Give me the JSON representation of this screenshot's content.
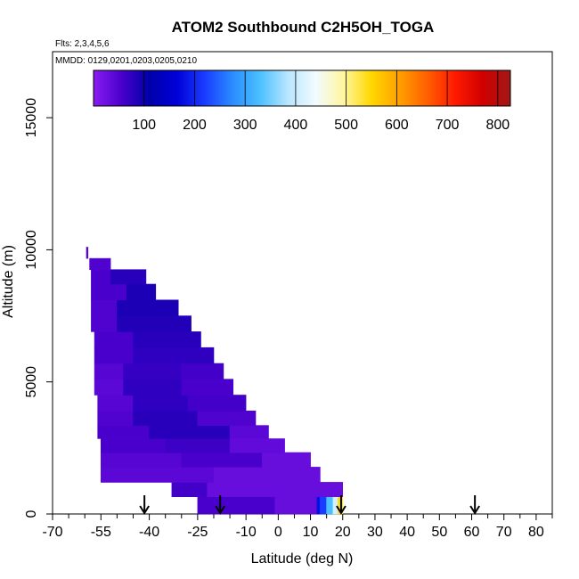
{
  "chart_data": {
    "type": "heatmap",
    "title": "ATOM2 Southbound C2H5OH_TOGA",
    "flights_label": "Flts: 2,3,4,5,6",
    "dates_label": "MMDD: 0129,0201,0203,0205,0210",
    "xlabel": "Latitude (deg N)",
    "ylabel": "Altitude (m)",
    "xlim": [
      -70,
      85
    ],
    "ylim": [
      0,
      17500
    ],
    "x_ticks": [
      -70,
      -55,
      -40,
      -25,
      -10,
      0,
      10,
      20,
      30,
      40,
      50,
      60,
      70,
      80
    ],
    "x_tick_labels": [
      "-70",
      "-55",
      "-40",
      "-25",
      "-10",
      "0",
      "10",
      "20",
      "30",
      "40",
      "50",
      "60",
      "70",
      "80"
    ],
    "x_minor_ticks": [
      -65,
      -60,
      -50,
      -45,
      -35,
      -30,
      -20,
      -15,
      -5,
      5,
      15,
      25,
      35,
      45,
      55,
      65,
      75,
      85
    ],
    "y_ticks": [
      0,
      5000,
      10000,
      15000
    ],
    "y_tick_labels": [
      "0",
      "5000",
      "10000",
      "15000"
    ],
    "colorbar": {
      "min": 0,
      "max": 825,
      "ticks": [
        100,
        200,
        300,
        400,
        500,
        600,
        700,
        800
      ],
      "tick_labels": [
        "100",
        "200",
        "300",
        "400",
        "500",
        "600",
        "700",
        "800"
      ],
      "colors": [
        "#8a1cf0",
        "#4a00cc",
        "#0000a8",
        "#0000d8",
        "#1a3cff",
        "#2a8cff",
        "#4cc0ff",
        "#b8e6ff",
        "#f2fbff",
        "#fff6a0",
        "#ffd800",
        "#ffa000",
        "#ff6000",
        "#ff1a00",
        "#d00000",
        "#a01818"
      ]
    },
    "profile_latitudes": [
      -41.5,
      -18,
      19.5,
      61
    ],
    "data": {
      "lat_start": -56.5,
      "lat_step": 0.5,
      "rows": [
        {
          "z": 400,
          "x0": -25,
          "x1": -1,
          "v": 55
        },
        {
          "z": 400,
          "x0": -1,
          "x1": 12,
          "v": 30
        },
        {
          "z": 400,
          "x0": 12,
          "x1": 13,
          "v": 180
        },
        {
          "z": 400,
          "x0": 13,
          "x1": 15,
          "v": 220
        },
        {
          "z": 400,
          "x0": 15,
          "x1": 17,
          "v": 330
        },
        {
          "z": 400,
          "x0": 17,
          "x1": 18.5,
          "v": 410
        },
        {
          "z": 400,
          "x0": 18.5,
          "x1": 20,
          "v": 540
        },
        {
          "z": 900,
          "x0": -33,
          "x1": -22,
          "v": 60
        },
        {
          "z": 900,
          "x0": -22,
          "x1": 20,
          "v": 30
        },
        {
          "z": 1500,
          "x0": -55,
          "x1": -20,
          "v": 40
        },
        {
          "z": 1500,
          "x0": -20,
          "x1": 13,
          "v": 30
        },
        {
          "z": 2050,
          "x0": -55,
          "x1": -30,
          "v": 45
        },
        {
          "z": 2050,
          "x0": -30,
          "x1": -5,
          "v": 55
        },
        {
          "z": 2050,
          "x0": -5,
          "x1": 10,
          "v": 30
        },
        {
          "z": 2600,
          "x0": -55,
          "x1": -35,
          "v": 55
        },
        {
          "z": 2600,
          "x0": -35,
          "x1": -15,
          "v": 65
        },
        {
          "z": 2600,
          "x0": -15,
          "x1": 2,
          "v": 35
        },
        {
          "z": 3100,
          "x0": -56,
          "x1": -40,
          "v": 55
        },
        {
          "z": 3100,
          "x0": -40,
          "x1": -15,
          "v": 80
        },
        {
          "z": 3100,
          "x0": -15,
          "x1": -3,
          "v": 40
        },
        {
          "z": 3600,
          "x0": -56,
          "x1": -45,
          "v": 50
        },
        {
          "z": 3600,
          "x0": -45,
          "x1": -25,
          "v": 80
        },
        {
          "z": 3600,
          "x0": -25,
          "x1": -7,
          "v": 50
        },
        {
          "z": 4200,
          "x0": -56,
          "x1": -45,
          "v": 45
        },
        {
          "z": 4200,
          "x0": -45,
          "x1": -28,
          "v": 75
        },
        {
          "z": 4200,
          "x0": -28,
          "x1": -10,
          "v": 60
        },
        {
          "z": 4800,
          "x0": -57,
          "x1": -48,
          "v": 40
        },
        {
          "z": 4800,
          "x0": -48,
          "x1": -30,
          "v": 75
        },
        {
          "z": 4800,
          "x0": -30,
          "x1": -14,
          "v": 55
        },
        {
          "z": 5400,
          "x0": -57,
          "x1": -48,
          "v": 45
        },
        {
          "z": 5400,
          "x0": -48,
          "x1": -30,
          "v": 70
        },
        {
          "z": 5400,
          "x0": -30,
          "x1": -17,
          "v": 60
        },
        {
          "z": 6000,
          "x0": -57,
          "x1": -45,
          "v": 55
        },
        {
          "z": 6000,
          "x0": -45,
          "x1": -20,
          "v": 75
        },
        {
          "z": 6600,
          "x0": -57,
          "x1": -45,
          "v": 55
        },
        {
          "z": 6600,
          "x0": -45,
          "x1": -24,
          "v": 80
        },
        {
          "z": 7200,
          "x0": -58,
          "x1": -50,
          "v": 50
        },
        {
          "z": 7200,
          "x0": -50,
          "x1": -27,
          "v": 85
        },
        {
          "z": 7800,
          "x0": -58,
          "x1": -50,
          "v": 50
        },
        {
          "z": 7800,
          "x0": -50,
          "x1": -31,
          "v": 90
        },
        {
          "z": 8400,
          "x0": -58,
          "x1": -47,
          "v": 55
        },
        {
          "z": 8400,
          "x0": -47,
          "x1": -38,
          "v": 90
        },
        {
          "z": 9000,
          "x0": -58,
          "x1": -52,
          "v": 55
        },
        {
          "z": 9000,
          "x0": -52,
          "x1": -41,
          "v": 80
        },
        {
          "z": 9500,
          "x0": -58.5,
          "x1": -52,
          "v": 50
        },
        {
          "z": 9850,
          "x0": -59.5,
          "x1": -59,
          "v": 45
        }
      ]
    }
  }
}
